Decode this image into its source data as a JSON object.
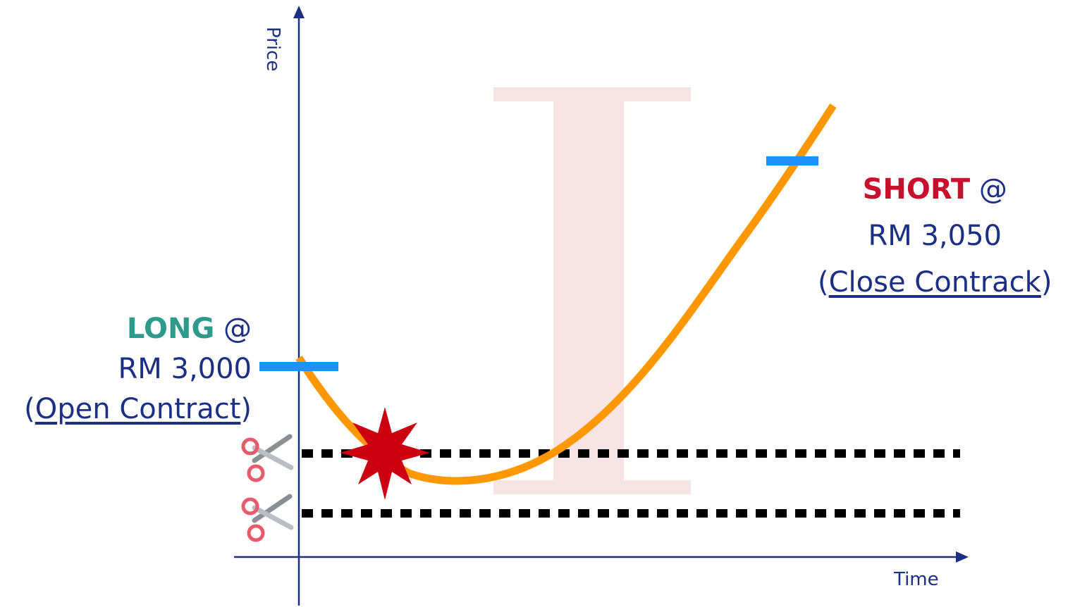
{
  "axes": {
    "xlabel": "Time",
    "ylabel": "Price"
  },
  "long_label": {
    "keyword": "LONG",
    "at": " @",
    "price": "RM 3,000",
    "open_paren": "(",
    "note": "Open Contract",
    "close_paren": ")"
  },
  "short_label": {
    "keyword": "SHORT",
    "at": " @",
    "price": "RM 3,050",
    "open_paren": "(",
    "note": "Close Contrack",
    "close_paren": ")"
  },
  "watermark": "I",
  "colors": {
    "axis": "#1b2f84",
    "price_curve": "#ff9800",
    "entry_marker": "#1e90ff",
    "stop_line": "#000000",
    "burst": "#cc0011",
    "watermark": "#f7e4e4",
    "long": "#2f9a8b",
    "short": "#c8102e"
  },
  "icons": [
    "scissors-icon",
    "scissors-icon",
    "burst-icon"
  ]
}
